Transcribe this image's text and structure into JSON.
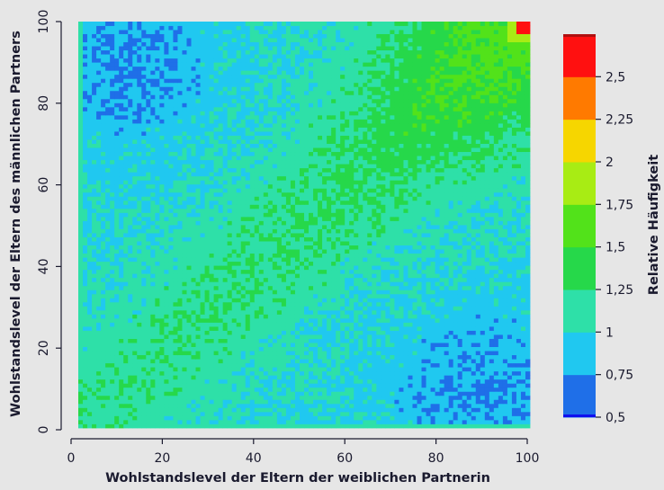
{
  "chart_data": {
    "type": "heatmap",
    "title": "",
    "xlabel": "Wohlstandslevel der Eltern der weiblichen Partnerin",
    "ylabel": "Wohlstandslevel der Eltern des männlichen Partners",
    "xlim": [
      0,
      100
    ],
    "ylim": [
      0,
      100
    ],
    "x_ticks": [
      "0",
      "20",
      "40",
      "60",
      "80",
      "100"
    ],
    "y_ticks": [
      "0",
      "20",
      "40",
      "60",
      "80",
      "100"
    ],
    "grid": false,
    "cells_per_axis": 100,
    "colorbar": {
      "label": "Relative Häufigkeit",
      "range": [
        0.5,
        2.75
      ],
      "tick_labels": [
        "0,5",
        "0,75",
        "1",
        "1,25",
        "1,5",
        "1,75",
        "2",
        "2,25",
        "2,5"
      ],
      "tick_values": [
        0.5,
        0.75,
        1.0,
        1.25,
        1.5,
        1.75,
        2.0,
        2.25,
        2.5
      ],
      "bands": [
        {
          "from": 0.5,
          "to": 0.75,
          "color": "#1f6fe8"
        },
        {
          "from": 0.75,
          "to": 1.0,
          "color": "#20c8f0"
        },
        {
          "from": 1.0,
          "to": 1.25,
          "color": "#2ee0a8"
        },
        {
          "from": 1.25,
          "to": 1.5,
          "color": "#26d84a"
        },
        {
          "from": 1.5,
          "to": 1.75,
          "color": "#52e21a"
        },
        {
          "from": 1.75,
          "to": 2.0,
          "color": "#a8ec14"
        },
        {
          "from": 2.0,
          "to": 2.25,
          "color": "#f6d600"
        },
        {
          "from": 2.25,
          "to": 2.5,
          "color": "#ff7a00"
        },
        {
          "from": 2.5,
          "to": 2.75,
          "color": "#ff1010"
        }
      ]
    }
  }
}
